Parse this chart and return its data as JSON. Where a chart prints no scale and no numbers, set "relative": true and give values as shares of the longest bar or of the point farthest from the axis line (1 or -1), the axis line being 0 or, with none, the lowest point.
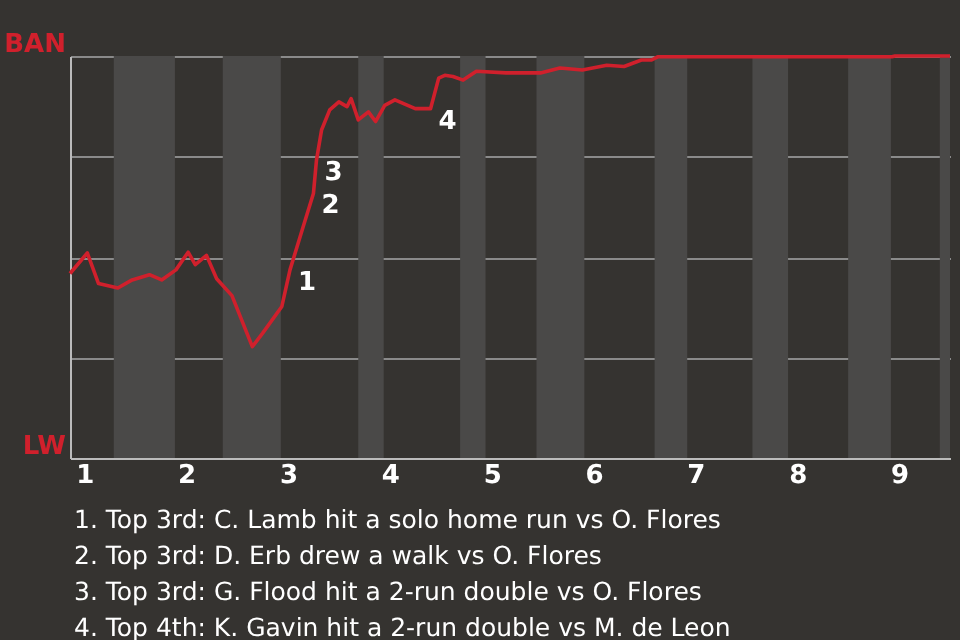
{
  "chart_data": {
    "type": "line",
    "relative": true,
    "x": [
      0.86,
      1.03,
      1.14,
      1.33,
      1.47,
      1.64,
      1.76,
      1.9,
      2.02,
      2.09,
      2.2,
      2.3,
      2.45,
      2.65,
      2.75,
      2.94,
      3.02,
      3.15,
      3.25,
      3.28,
      3.33,
      3.41,
      3.5,
      3.58,
      3.62,
      3.69,
      3.79,
      3.86,
      3.95,
      4.05,
      4.25,
      4.4,
      4.48,
      4.54,
      4.62,
      4.72,
      4.85,
      5.14,
      5.48,
      5.67,
      5.89,
      6.13,
      6.3,
      6.47,
      6.57,
      6.63,
      8.93,
      8.96,
      9.5
    ],
    "series": [
      {
        "color": "#d0202c",
        "values": [
          0.459,
          0.51,
          0.434,
          0.423,
          0.443,
          0.456,
          0.443,
          0.468,
          0.512,
          0.481,
          0.504,
          0.446,
          0.404,
          0.277,
          0.31,
          0.377,
          0.468,
          0.576,
          0.658,
          0.741,
          0.816,
          0.866,
          0.886,
          0.874,
          0.894,
          0.841,
          0.861,
          0.837,
          0.877,
          0.891,
          0.869,
          0.869,
          0.945,
          0.952,
          0.949,
          0.94,
          0.962,
          0.958,
          0.958,
          0.97,
          0.965,
          0.977,
          0.974,
          0.99,
          0.99,
          0.998,
          0.998,
          1,
          1
        ]
      }
    ],
    "xlim": [
      0.86,
      9.5
    ],
    "xticks": [
      1,
      2,
      3,
      4,
      5,
      6,
      7,
      8,
      9
    ],
    "grid": "y",
    "marker": "none",
    "line_style": "solid",
    "bands": [
      {
        "axis": "x",
        "from": 1.29,
        "to": 1.89,
        "color": "#4a4948"
      },
      {
        "axis": "x",
        "from": 2.36,
        "to": 2.93,
        "color": "#4a4948"
      },
      {
        "axis": "x",
        "from": 3.69,
        "to": 3.94,
        "color": "#4a4948"
      },
      {
        "axis": "x",
        "from": 4.69,
        "to": 4.94,
        "color": "#4a4948"
      },
      {
        "axis": "x",
        "from": 5.44,
        "to": 5.91,
        "color": "#4a4948"
      },
      {
        "axis": "x",
        "from": 6.6,
        "to": 6.92,
        "color": "#4a4948"
      },
      {
        "axis": "x",
        "from": 7.56,
        "to": 7.91,
        "color": "#4a4948"
      },
      {
        "axis": "x",
        "from": 8.5,
        "to": 8.92,
        "color": "#4a4948"
      },
      {
        "axis": "x",
        "from": 9.4,
        "to": 9.5,
        "color": "#4a4948"
      }
    ],
    "annotations": [
      "BAN",
      "LW",
      {
        "text": "1",
        "x": 3.02,
        "y": 0.468
      },
      {
        "text": "2",
        "x": 3.25,
        "y": 0.658
      },
      {
        "text": "3",
        "x": 3.28,
        "y": 0.741
      },
      {
        "text": "4",
        "x": 4.4,
        "y": 0.869
      },
      "1. Top 3rd: C. Lamb hit a solo home run vs O. Flores",
      "2. Top 3rd: D. Erb drew a walk vs O. Flores",
      "3. Top 3rd: G. Flood hit a 2-run double vs O. Flores",
      "4. Top 4th: K. Gavin hit a 2-run double vs M. de Leon"
    ]
  }
}
